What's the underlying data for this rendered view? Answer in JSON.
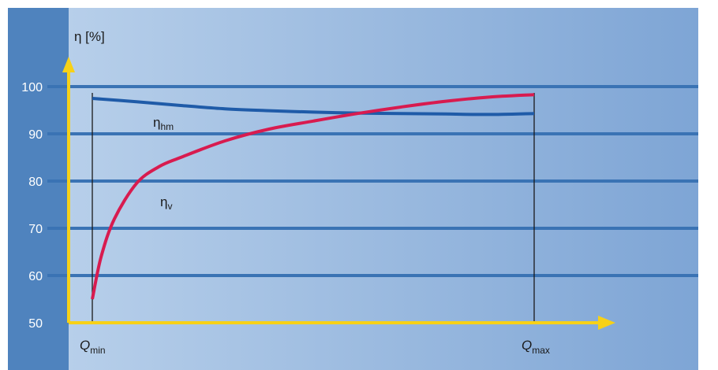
{
  "chart_data": {
    "type": "line",
    "ylabel": "η [%]",
    "y_ticks": [
      "50",
      "60",
      "70",
      "80",
      "90",
      "100"
    ],
    "ylim": [
      50,
      100
    ],
    "grid": true,
    "x_markers": [
      {
        "main": "Q",
        "sub": "min",
        "x": 0
      },
      {
        "main": "Q",
        "sub": "max",
        "x": 1
      }
    ],
    "series": [
      {
        "name_main": "η",
        "name_sub": "hm",
        "color": "#1f5ba8",
        "x": [
          0,
          0.1,
          0.2,
          0.3,
          0.4,
          0.5,
          0.6,
          0.7,
          0.8,
          0.9,
          1.0
        ],
        "values": [
          97.5,
          96.8,
          96.0,
          95.3,
          94.9,
          94.6,
          94.4,
          94.3,
          94.2,
          94.1,
          94.3
        ]
      },
      {
        "name_main": "η",
        "name_sub": "v",
        "color": "#d81b4f",
        "x": [
          0,
          0.02,
          0.05,
          0.1,
          0.15,
          0.2,
          0.3,
          0.4,
          0.5,
          0.6,
          0.7,
          0.8,
          0.9,
          1.0
        ],
        "values": [
          55,
          64,
          72,
          79.5,
          83,
          85,
          88.5,
          91,
          92.7,
          94.3,
          95.7,
          96.9,
          97.8,
          98.3
        ]
      }
    ],
    "colors": {
      "panel_left": "#4f83be",
      "plot_bg_start": "#b7cfea",
      "plot_bg_end": "#7ea5d5",
      "grid": "#3a73b4",
      "axis": "#f7d117",
      "marker_line": "#1a1a1a"
    }
  }
}
